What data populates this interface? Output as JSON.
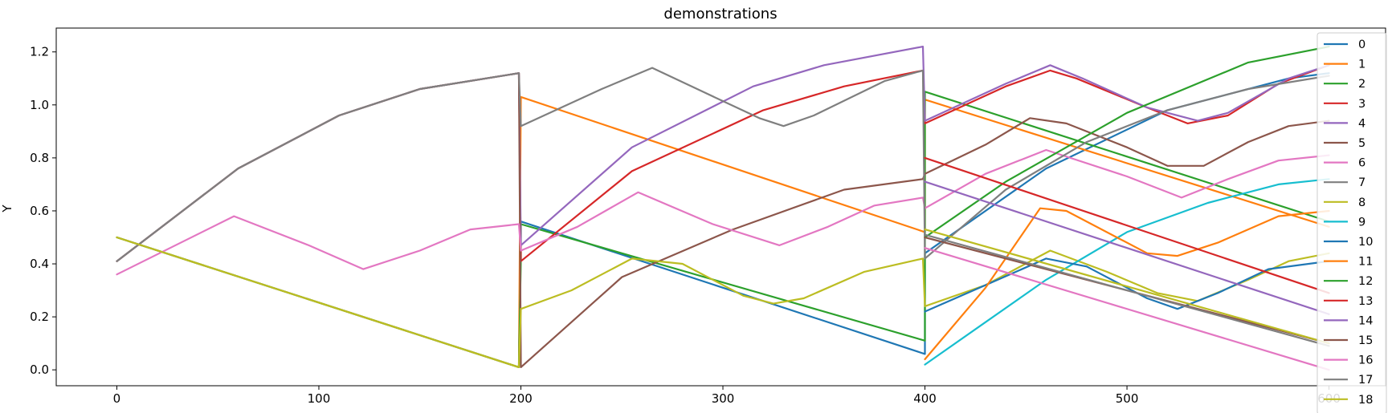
{
  "chart_data": {
    "type": "line",
    "title": "demonstrations",
    "xlabel": "",
    "ylabel": "Y",
    "xlim": [
      -30,
      628
    ],
    "ylim": [
      -0.06,
      1.29
    ],
    "x_ticks": [
      0,
      100,
      200,
      300,
      400,
      500,
      600
    ],
    "y_ticks": [
      0.0,
      0.2,
      0.4,
      0.6,
      0.8,
      1.0,
      1.2
    ],
    "x_tick_labels": [
      "0",
      "100",
      "200",
      "300",
      "400",
      "500",
      "600"
    ],
    "y_tick_labels": [
      "0.0",
      "0.2",
      "0.4",
      "0.6",
      "0.8",
      "1.0",
      "1.2"
    ],
    "grid": false,
    "legend_position": "right",
    "series": [
      {
        "name": "0",
        "color": "#1f77b4",
        "points": [
          [
            0,
            0.5
          ],
          [
            199,
            0.01
          ],
          [
            200,
            0.56
          ],
          [
            400,
            0.06
          ],
          [
            400,
            0.44
          ],
          [
            460,
            0.76
          ],
          [
            520,
            0.98
          ],
          [
            580,
            1.1
          ],
          [
            600,
            1.12
          ]
        ]
      },
      {
        "name": "1",
        "color": "#ff7f0e",
        "points": [
          [
            0,
            0.5
          ],
          [
            199,
            0.01
          ],
          [
            200,
            1.03
          ],
          [
            400,
            0.52
          ],
          [
            400,
            1.02
          ],
          [
            600,
            0.54
          ]
        ]
      },
      {
        "name": "2",
        "color": "#2ca02c",
        "points": [
          [
            0,
            0.5
          ],
          [
            199,
            0.01
          ],
          [
            200,
            0.42
          ],
          [
            200,
            0.55
          ],
          [
            400,
            0.11
          ],
          [
            400,
            1.05
          ],
          [
            600,
            0.56
          ]
        ]
      },
      {
        "name": "3",
        "color": "#d62728",
        "points": [
          [
            0,
            0.41
          ],
          [
            60,
            0.76
          ],
          [
            110,
            0.96
          ],
          [
            150,
            1.06
          ],
          [
            199,
            1.12
          ],
          [
            200,
            0.41
          ],
          [
            255,
            0.75
          ],
          [
            320,
            0.98
          ],
          [
            360,
            1.07
          ],
          [
            399,
            1.13
          ],
          [
            400,
            0.93
          ],
          [
            440,
            1.07
          ],
          [
            462,
            1.13
          ],
          [
            475,
            1.1
          ],
          [
            510,
            0.99
          ],
          [
            530,
            0.93
          ],
          [
            550,
            0.96
          ],
          [
            575,
            1.08
          ],
          [
            600,
            1.15
          ]
        ]
      },
      {
        "name": "4",
        "color": "#9467bd",
        "points": [
          [
            0,
            0.41
          ],
          [
            60,
            0.76
          ],
          [
            110,
            0.96
          ],
          [
            150,
            1.06
          ],
          [
            199,
            1.12
          ],
          [
            200,
            0.47
          ],
          [
            255,
            0.84
          ],
          [
            315,
            1.07
          ],
          [
            350,
            1.15
          ],
          [
            399,
            1.22
          ],
          [
            400,
            0.94
          ],
          [
            440,
            1.08
          ],
          [
            462,
            1.15
          ],
          [
            478,
            1.1
          ],
          [
            510,
            0.99
          ],
          [
            535,
            0.94
          ],
          [
            550,
            0.97
          ],
          [
            580,
            1.1
          ],
          [
            600,
            1.15
          ]
        ]
      },
      {
        "name": "5",
        "color": "#8c564b",
        "points": [
          [
            0,
            0.41
          ],
          [
            60,
            0.76
          ],
          [
            110,
            0.96
          ],
          [
            150,
            1.06
          ],
          [
            199,
            1.12
          ],
          [
            200,
            0.01
          ],
          [
            250,
            0.35
          ],
          [
            305,
            0.53
          ],
          [
            360,
            0.68
          ],
          [
            399,
            0.72
          ],
          [
            400,
            0.74
          ],
          [
            430,
            0.85
          ],
          [
            452,
            0.95
          ],
          [
            470,
            0.93
          ],
          [
            500,
            0.84
          ],
          [
            520,
            0.77
          ],
          [
            538,
            0.77
          ],
          [
            560,
            0.86
          ],
          [
            580,
            0.92
          ],
          [
            600,
            0.94
          ]
        ]
      },
      {
        "name": "6",
        "color": "#e377c2",
        "points": [
          [
            0,
            0.36
          ],
          [
            58,
            0.58
          ],
          [
            95,
            0.47
          ],
          [
            122,
            0.38
          ],
          [
            150,
            0.45
          ],
          [
            175,
            0.53
          ],
          [
            199,
            0.55
          ],
          [
            200,
            0.45
          ],
          [
            228,
            0.54
          ],
          [
            258,
            0.67
          ],
          [
            295,
            0.55
          ],
          [
            328,
            0.47
          ],
          [
            352,
            0.54
          ],
          [
            375,
            0.62
          ],
          [
            399,
            0.65
          ],
          [
            400,
            0.61
          ],
          [
            430,
            0.74
          ],
          [
            460,
            0.83
          ],
          [
            500,
            0.73
          ],
          [
            527,
            0.65
          ],
          [
            550,
            0.72
          ],
          [
            575,
            0.79
          ],
          [
            600,
            0.81
          ]
        ]
      },
      {
        "name": "7",
        "color": "#7f7f7f",
        "points": [
          [
            0,
            0.41
          ],
          [
            60,
            0.76
          ],
          [
            110,
            0.96
          ],
          [
            150,
            1.06
          ],
          [
            199,
            1.12
          ],
          [
            200,
            0.92
          ],
          [
            240,
            1.06
          ],
          [
            265,
            1.14
          ],
          [
            290,
            1.05
          ],
          [
            318,
            0.95
          ],
          [
            330,
            0.92
          ],
          [
            345,
            0.96
          ],
          [
            380,
            1.09
          ],
          [
            399,
            1.13
          ],
          [
            400,
            0.42
          ],
          [
            440,
            0.68
          ],
          [
            480,
            0.86
          ],
          [
            520,
            0.98
          ],
          [
            560,
            1.06
          ],
          [
            600,
            1.11
          ]
        ]
      },
      {
        "name": "8",
        "color": "#bcbd22",
        "points": [
          [
            0,
            0.5
          ],
          [
            199,
            0.01
          ],
          [
            200,
            0.23
          ],
          [
            225,
            0.3
          ],
          [
            255,
            0.42
          ],
          [
            280,
            0.4
          ],
          [
            310,
            0.28
          ],
          [
            325,
            0.25
          ],
          [
            340,
            0.27
          ],
          [
            370,
            0.37
          ],
          [
            399,
            0.42
          ],
          [
            400,
            0.24
          ],
          [
            430,
            0.32
          ],
          [
            462,
            0.45
          ],
          [
            490,
            0.37
          ],
          [
            515,
            0.29
          ],
          [
            535,
            0.26
          ],
          [
            560,
            0.34
          ],
          [
            580,
            0.41
          ],
          [
            600,
            0.44
          ]
        ]
      },
      {
        "name": "9",
        "color": "#17becf",
        "points": [
          [
            400,
            0.02
          ],
          [
            430,
            0.18
          ],
          [
            460,
            0.34
          ],
          [
            500,
            0.52
          ],
          [
            540,
            0.63
          ],
          [
            575,
            0.7
          ],
          [
            600,
            0.72
          ]
        ]
      },
      {
        "name": "10",
        "color": "#1f77b4",
        "points": [
          [
            400,
            0.22
          ],
          [
            430,
            0.32
          ],
          [
            460,
            0.42
          ],
          [
            480,
            0.39
          ],
          [
            510,
            0.27
          ],
          [
            525,
            0.23
          ],
          [
            545,
            0.29
          ],
          [
            570,
            0.38
          ],
          [
            600,
            0.41
          ]
        ]
      },
      {
        "name": "11",
        "color": "#ff7f0e",
        "points": [
          [
            400,
            0.04
          ],
          [
            430,
            0.31
          ],
          [
            457,
            0.61
          ],
          [
            470,
            0.6
          ],
          [
            510,
            0.44
          ],
          [
            525,
            0.43
          ],
          [
            545,
            0.48
          ],
          [
            575,
            0.58
          ],
          [
            600,
            0.6
          ]
        ]
      },
      {
        "name": "12",
        "color": "#2ca02c",
        "points": [
          [
            400,
            0.5
          ],
          [
            440,
            0.71
          ],
          [
            500,
            0.97
          ],
          [
            560,
            1.16
          ],
          [
            600,
            1.22
          ]
        ]
      },
      {
        "name": "13",
        "color": "#d62728",
        "points": [
          [
            400,
            0.8
          ],
          [
            600,
            0.29
          ]
        ]
      },
      {
        "name": "14",
        "color": "#9467bd",
        "points": [
          [
            400,
            0.71
          ],
          [
            600,
            0.21
          ]
        ]
      },
      {
        "name": "15",
        "color": "#8c564b",
        "points": [
          [
            400,
            0.5
          ],
          [
            600,
            0.1
          ]
        ]
      },
      {
        "name": "16",
        "color": "#e377c2",
        "points": [
          [
            400,
            0.46
          ],
          [
            600,
            0.0
          ]
        ]
      },
      {
        "name": "17",
        "color": "#7f7f7f",
        "points": [
          [
            400,
            0.51
          ],
          [
            600,
            0.09
          ]
        ]
      },
      {
        "name": "18",
        "color": "#bcbd22",
        "points": [
          [
            400,
            0.53
          ],
          [
            600,
            0.1
          ]
        ]
      }
    ]
  }
}
